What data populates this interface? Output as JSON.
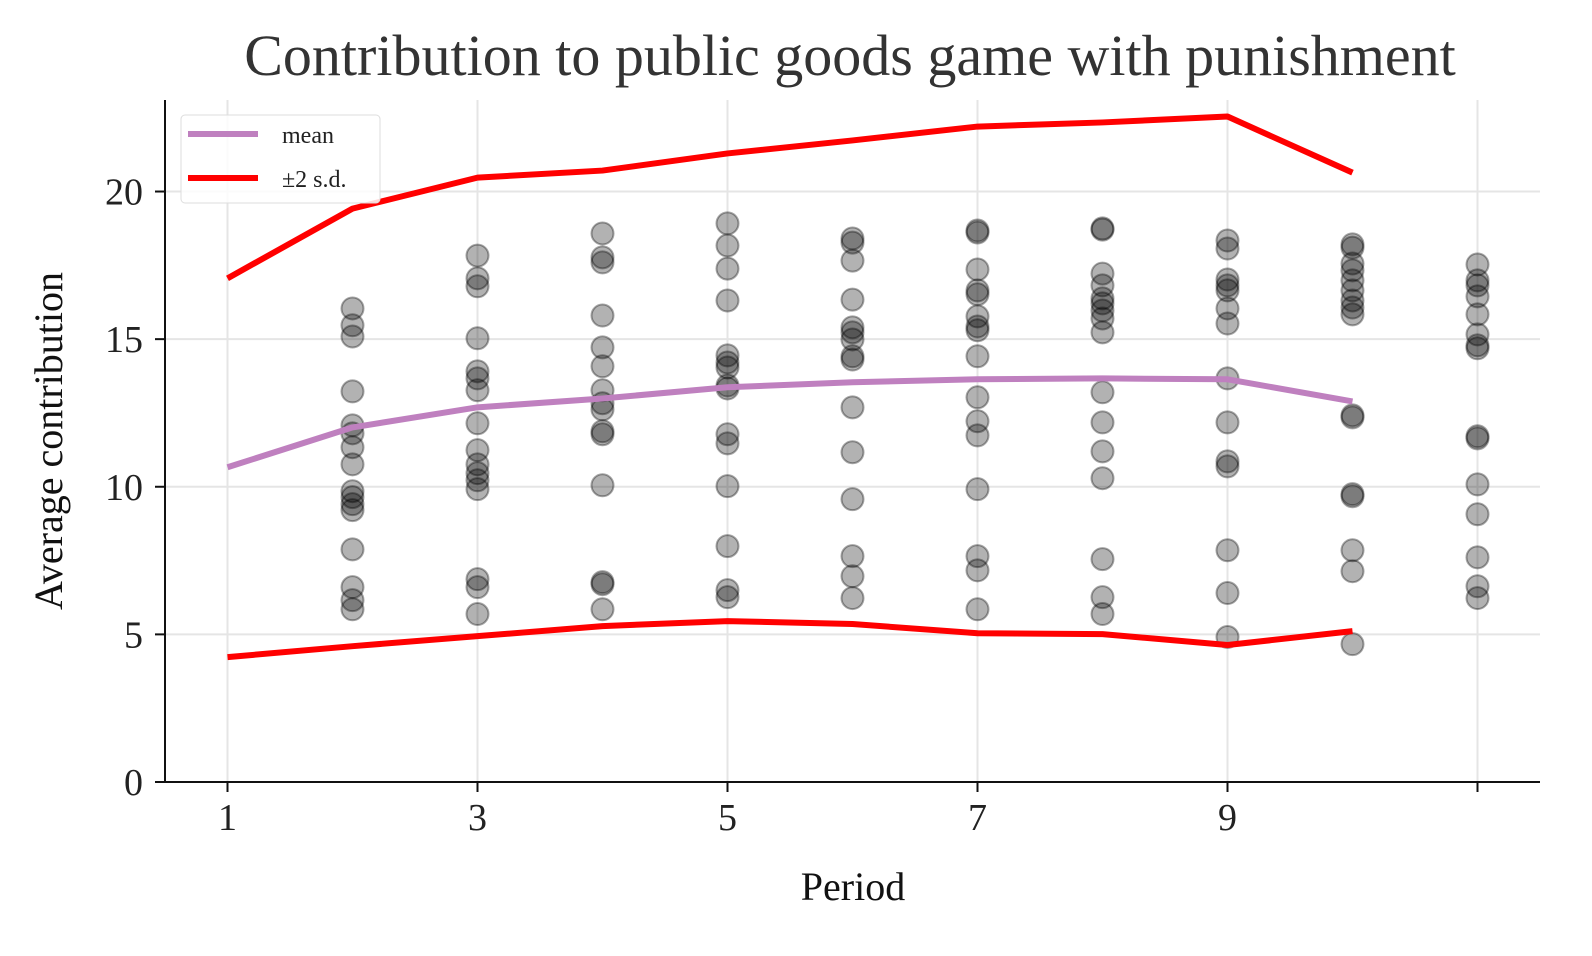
{
  "chart_data": {
    "type": "scatter",
    "title": "Contribution to public goods game with punishment",
    "xlabel": "Period",
    "ylabel": "Average contribution",
    "xlim": [
      0.5,
      11.5
    ],
    "ylim": [
      0,
      23.1
    ],
    "xticks": [
      1,
      3,
      5,
      7,
      9,
      11
    ],
    "xtick_labels": [
      "1",
      "3",
      "5",
      "7",
      "9",
      ""
    ],
    "yticks": [
      0,
      5,
      10,
      15,
      20
    ],
    "ytick_labels": [
      "0",
      "5",
      "10",
      "15",
      "20"
    ],
    "grid": true,
    "legend": {
      "placement": "top-left",
      "entries": [
        "mean",
        "±2 s.d."
      ]
    },
    "colors": {
      "mean": "#bf80bf",
      "sd": "#ff0000",
      "points": "#000000"
    },
    "points": [
      {
        "period": 2,
        "values": [
          16.04,
          15.47,
          15.09,
          13.23,
          12.08,
          11.81,
          11.34,
          10.76,
          9.85,
          9.65,
          9.41,
          9.21,
          7.88,
          6.6,
          6.16,
          5.85
        ]
      },
      {
        "period": 3,
        "values": [
          17.83,
          17.06,
          16.79,
          15.03,
          13.91,
          13.67,
          13.27,
          12.15,
          11.24,
          10.76,
          10.46,
          10.22,
          9.92,
          6.87,
          6.6,
          5.69
        ]
      },
      {
        "period": 4,
        "values": [
          18.58,
          17.77,
          17.6,
          15.8,
          14.72,
          14.08,
          13.27,
          12.83,
          12.62,
          11.88,
          11.78,
          10.05,
          6.77,
          6.7,
          5.85
        ]
      },
      {
        "period": 5,
        "values": [
          18.92,
          18.17,
          17.39,
          16.31,
          14.45,
          14.21,
          14.04,
          13.43,
          13.33,
          11.78,
          11.47,
          10.02,
          7.99,
          6.5,
          6.26
        ]
      },
      {
        "period": 6,
        "values": [
          18.41,
          18.27,
          17.66,
          16.34,
          15.4,
          15.23,
          14.99,
          14.42,
          14.31,
          12.69,
          11.17,
          9.58,
          7.65,
          6.97,
          6.23
        ]
      },
      {
        "period": 7,
        "values": [
          18.68,
          18.61,
          17.36,
          16.65,
          16.52,
          15.77,
          15.43,
          15.3,
          14.42,
          13.03,
          12.22,
          11.74,
          9.92,
          7.65,
          7.17,
          5.85
        ]
      },
      {
        "period": 8,
        "values": [
          18.75,
          18.71,
          17.22,
          16.82,
          16.38,
          16.21,
          15.97,
          15.7,
          15.23,
          13.2,
          12.18,
          11.2,
          10.29,
          7.55,
          6.26,
          5.69
        ]
      },
      {
        "period": 9,
        "values": [
          18.34,
          18.07,
          17.02,
          16.82,
          16.65,
          16.04,
          15.53,
          13.67,
          12.18,
          10.86,
          10.69,
          7.85,
          6.4,
          4.91
        ]
      },
      {
        "period": 10,
        "values": [
          18.21,
          18.1,
          17.56,
          17.33,
          16.99,
          16.65,
          16.31,
          16.07,
          15.84,
          12.42,
          12.35,
          9.75,
          9.68,
          7.85,
          7.14,
          4.67
        ]
      },
      {
        "period": 11,
        "values": [
          17.53,
          16.99,
          16.82,
          16.45,
          15.84,
          15.16,
          14.79,
          14.69,
          11.71,
          11.64,
          10.08,
          9.07,
          7.61,
          6.63,
          6.23
        ]
      }
    ],
    "series": [
      {
        "name": "mean",
        "x": [
          1,
          2,
          3,
          4,
          5,
          6,
          7,
          8,
          9,
          10
        ],
        "values": [
          10.66,
          12.01,
          12.69,
          12.99,
          13.37,
          13.54,
          13.64,
          13.67,
          13.64,
          12.89
        ]
      },
      {
        "name": "+2 s.d.",
        "x": [
          1,
          2,
          3,
          4,
          5,
          6,
          7,
          8,
          9,
          10
        ],
        "values": [
          17.06,
          19.42,
          20.47,
          20.71,
          21.29,
          21.73,
          22.2,
          22.34,
          22.54,
          20.64
        ]
      },
      {
        "name": "-2 s.d.",
        "x": [
          1,
          2,
          3,
          4,
          5,
          6,
          7,
          8,
          9,
          10
        ],
        "values": [
          4.23,
          4.6,
          4.94,
          5.28,
          5.45,
          5.35,
          5.04,
          5.01,
          4.64,
          5.11
        ]
      }
    ]
  }
}
